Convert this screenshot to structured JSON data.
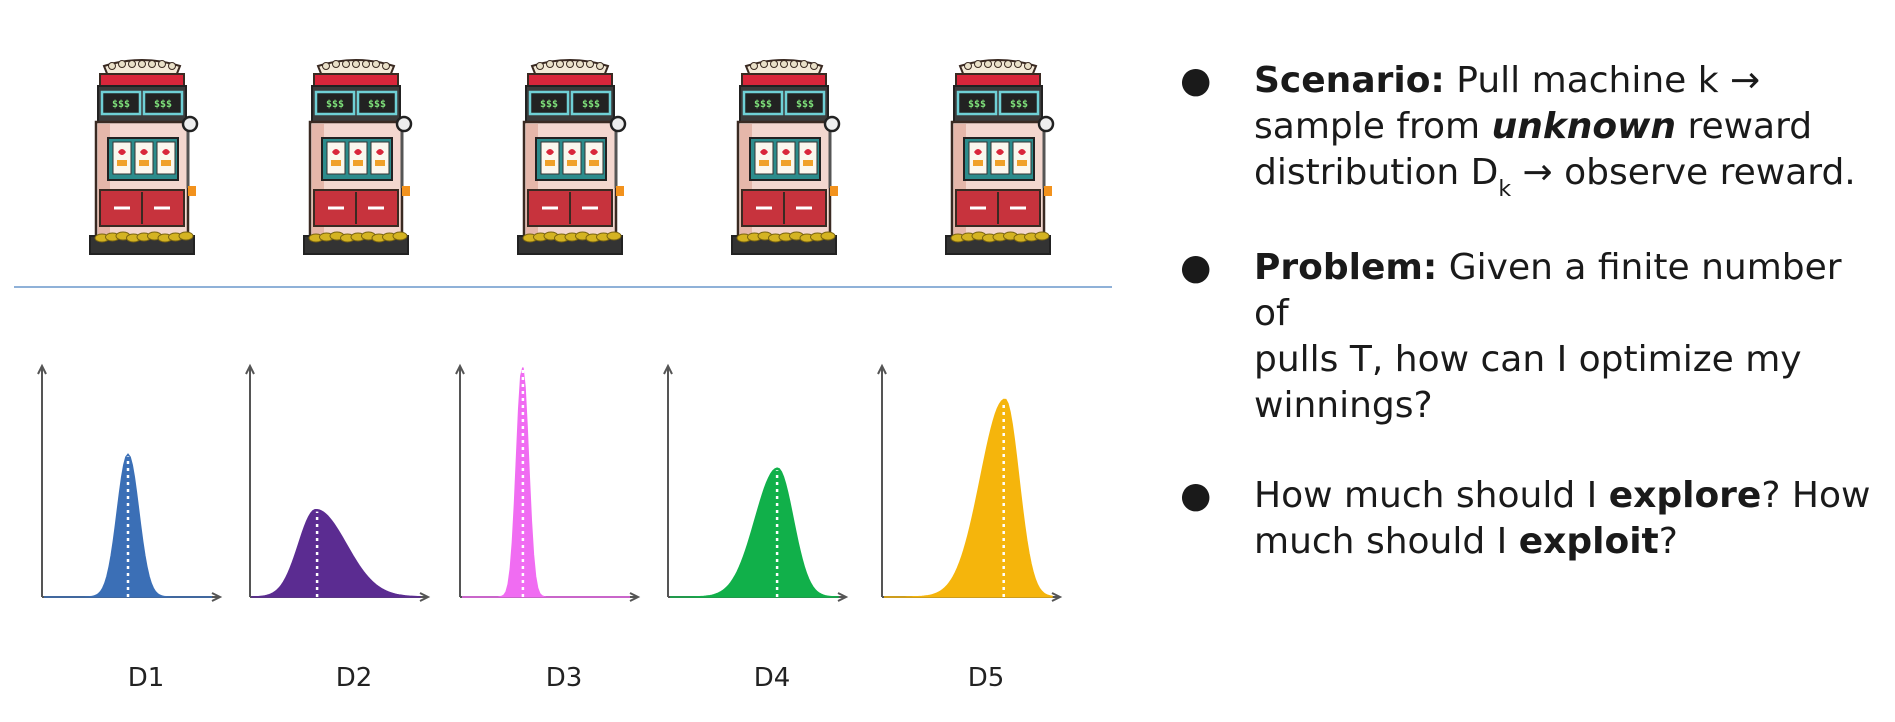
{
  "machines": {
    "count": 5,
    "display_text": [
      "$$$",
      "$$$"
    ]
  },
  "distributions": [
    {
      "label": "D1",
      "color": "#3b6fb6",
      "mean": 0.5,
      "spread": 0.18,
      "peak": 0.62,
      "skew": 0
    },
    {
      "label": "D2",
      "color": "#5b2c91",
      "mean": 0.38,
      "spread": 0.4,
      "peak": 0.38,
      "skew": 0.55
    },
    {
      "label": "D3",
      "color": "#f06cf2",
      "mean": 0.36,
      "spread": 0.1,
      "peak": 1.0,
      "skew": 0
    },
    {
      "label": "D4",
      "color": "#11b04a",
      "mean": 0.64,
      "spread": 0.32,
      "peak": 0.56,
      "skew": -0.35
    },
    {
      "label": "D5",
      "color": "#f5b50c",
      "mean": 0.72,
      "spread": 0.32,
      "peak": 0.86,
      "skew": -0.55
    }
  ],
  "bullets": [
    {
      "label": "Scenario:",
      "line1": "Pull machine k →",
      "line2_a": "sample from ",
      "line2_b": "unknown",
      "line2_c": " reward",
      "line3_a": "distribution D",
      "line3_sub": "k",
      "line3_b": " → observe reward."
    },
    {
      "label": "Problem:",
      "line1": "Given a finite number of",
      "line2": "pulls T, how can I optimize my",
      "line3": "winnings?"
    },
    {
      "a": "How much should I ",
      "b": "explore",
      "c": "? How",
      "d": "much should I ",
      "e": "exploit",
      "f": "?"
    }
  ],
  "colors": {
    "divider": "#8fb1d8",
    "axis": "#555555"
  }
}
